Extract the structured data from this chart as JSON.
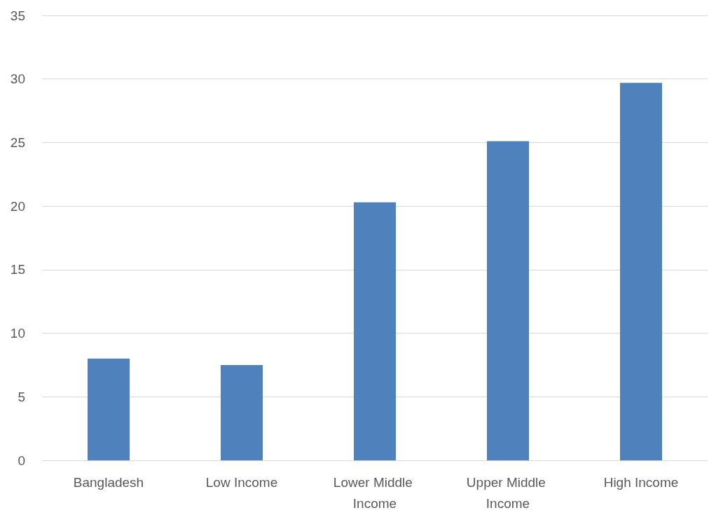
{
  "chart_data": {
    "type": "bar",
    "categories": [
      "Bangladesh",
      "Low Income",
      "Lower Middle Income",
      "Upper Middle Income",
      "High Income"
    ],
    "values": [
      8.0,
      7.5,
      20.3,
      25.1,
      29.7
    ],
    "color": "#4f81bd",
    "ylim": [
      0,
      35
    ],
    "yticks": [
      0,
      5,
      10,
      15,
      20,
      25,
      30,
      35
    ],
    "grid": "y"
  }
}
